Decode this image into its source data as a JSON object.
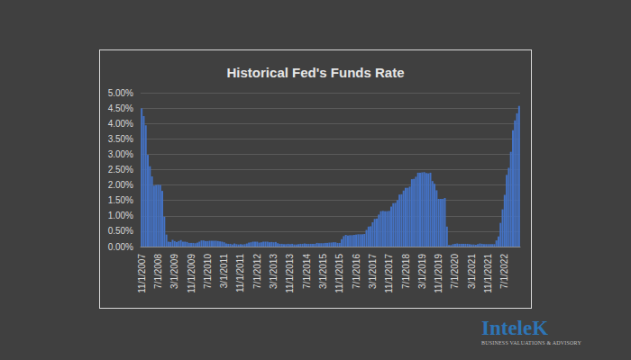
{
  "chart_data": {
    "type": "bar",
    "title": "Historical Fed's Funds Rate",
    "annotations": [
      "InteleK",
      "BUSINESS VALUATIONS & ADVISORY"
    ],
    "color": "#4472c4",
    "grid": true,
    "categories": [
      "11/1/2007",
      null,
      null,
      null,
      null,
      null,
      null,
      null,
      "7/1/2008",
      null,
      null,
      null,
      null,
      null,
      null,
      null,
      "3/1/2009",
      null,
      null,
      null,
      null,
      null,
      null,
      null,
      "11/1/2009",
      null,
      null,
      null,
      null,
      null,
      null,
      null,
      "7/1/2010",
      null,
      null,
      null,
      null,
      null,
      null,
      null,
      "3/1/2011",
      null,
      null,
      null,
      null,
      null,
      null,
      null,
      "11/1/2011",
      null,
      null,
      null,
      null,
      null,
      null,
      null,
      "7/1/2012",
      null,
      null,
      null,
      null,
      null,
      null,
      null,
      "3/1/2013",
      null,
      null,
      null,
      null,
      null,
      null,
      null,
      "11/1/2013",
      null,
      null,
      null,
      null,
      null,
      null,
      null,
      "7/1/2014",
      null,
      null,
      null,
      null,
      null,
      null,
      null,
      "3/1/2015",
      null,
      null,
      null,
      null,
      null,
      null,
      null,
      "11/1/2015",
      null,
      null,
      null,
      null,
      null,
      null,
      null,
      "7/1/2016",
      null,
      null,
      null,
      null,
      null,
      null,
      null,
      "3/1/2017",
      null,
      null,
      null,
      null,
      null,
      null,
      null,
      "11/1/2017",
      null,
      null,
      null,
      null,
      null,
      null,
      null,
      "7/1/2018",
      null,
      null,
      null,
      null,
      null,
      null,
      null,
      "3/1/2019",
      null,
      null,
      null,
      null,
      null,
      null,
      null,
      "11/1/2019",
      null,
      null,
      null,
      null,
      null,
      null,
      null,
      "7/1/2020",
      null,
      null,
      null,
      null,
      null,
      null,
      null,
      "3/1/2021",
      null,
      null,
      null,
      null,
      null,
      null,
      null,
      "11/1/2021",
      null,
      null,
      null,
      null,
      null,
      null,
      null,
      "7/1/2022",
      null,
      null,
      null,
      null,
      null,
      null,
      null
    ],
    "values": [
      4.49,
      4.24,
      3.94,
      2.98,
      2.61,
      2.28,
      1.98,
      2.0,
      2.01,
      2.0,
      1.81,
      0.97,
      0.39,
      0.16,
      0.15,
      0.22,
      0.18,
      0.15,
      0.18,
      0.21,
      0.16,
      0.16,
      0.15,
      0.12,
      0.12,
      0.12,
      0.11,
      0.13,
      0.16,
      0.2,
      0.2,
      0.18,
      0.18,
      0.19,
      0.19,
      0.19,
      0.19,
      0.18,
      0.17,
      0.16,
      0.14,
      0.1,
      0.09,
      0.09,
      0.07,
      0.1,
      0.08,
      0.07,
      0.08,
      0.07,
      0.08,
      0.1,
      0.13,
      0.14,
      0.16,
      0.16,
      0.16,
      0.13,
      0.14,
      0.16,
      0.16,
      0.16,
      0.14,
      0.15,
      0.14,
      0.15,
      0.11,
      0.09,
      0.09,
      0.08,
      0.08,
      0.09,
      0.08,
      0.09,
      0.07,
      0.07,
      0.08,
      0.09,
      0.09,
      0.1,
      0.09,
      0.09,
      0.09,
      0.09,
      0.09,
      0.12,
      0.11,
      0.11,
      0.11,
      0.12,
      0.12,
      0.13,
      0.13,
      0.14,
      0.14,
      0.12,
      0.12,
      0.24,
      0.34,
      0.38,
      0.36,
      0.37,
      0.37,
      0.38,
      0.39,
      0.4,
      0.4,
      0.4,
      0.41,
      0.54,
      0.65,
      0.66,
      0.79,
      0.9,
      0.91,
      1.04,
      1.15,
      1.16,
      1.15,
      1.15,
      1.16,
      1.3,
      1.41,
      1.42,
      1.51,
      1.69,
      1.7,
      1.82,
      1.91,
      1.91,
      1.95,
      2.19,
      2.2,
      2.27,
      2.4,
      2.4,
      2.41,
      2.42,
      2.39,
      2.38,
      2.4,
      2.13,
      2.04,
      1.83,
      1.55,
      1.55,
      1.55,
      1.58,
      0.65,
      0.05,
      0.05,
      0.08,
      0.09,
      0.1,
      0.09,
      0.09,
      0.09,
      0.09,
      0.09,
      0.08,
      0.07,
      0.07,
      0.06,
      0.08,
      0.1,
      0.09,
      0.08,
      0.08,
      0.08,
      0.08,
      0.08,
      0.08,
      0.2,
      0.33,
      0.77,
      1.21,
      1.68,
      2.33,
      2.56,
      3.08,
      3.78,
      4.1,
      4.33,
      4.57
    ],
    "ylim": [
      0,
      5
    ],
    "yticks": [
      {
        "value": 0,
        "label": "0.00%"
      },
      {
        "value": 0.5,
        "label": "0.50%"
      },
      {
        "value": 1,
        "label": "1.00%"
      },
      {
        "value": 1.5,
        "label": "1.50%"
      },
      {
        "value": 2,
        "label": "2.00%"
      },
      {
        "value": 2.5,
        "label": "2.50%"
      },
      {
        "value": 3,
        "label": "3.00%"
      },
      {
        "value": 3.5,
        "label": "3.50%"
      },
      {
        "value": 4,
        "label": "4.00%"
      },
      {
        "value": 4.5,
        "label": "4.50%"
      },
      {
        "value": 5,
        "label": "5.00%"
      }
    ]
  }
}
